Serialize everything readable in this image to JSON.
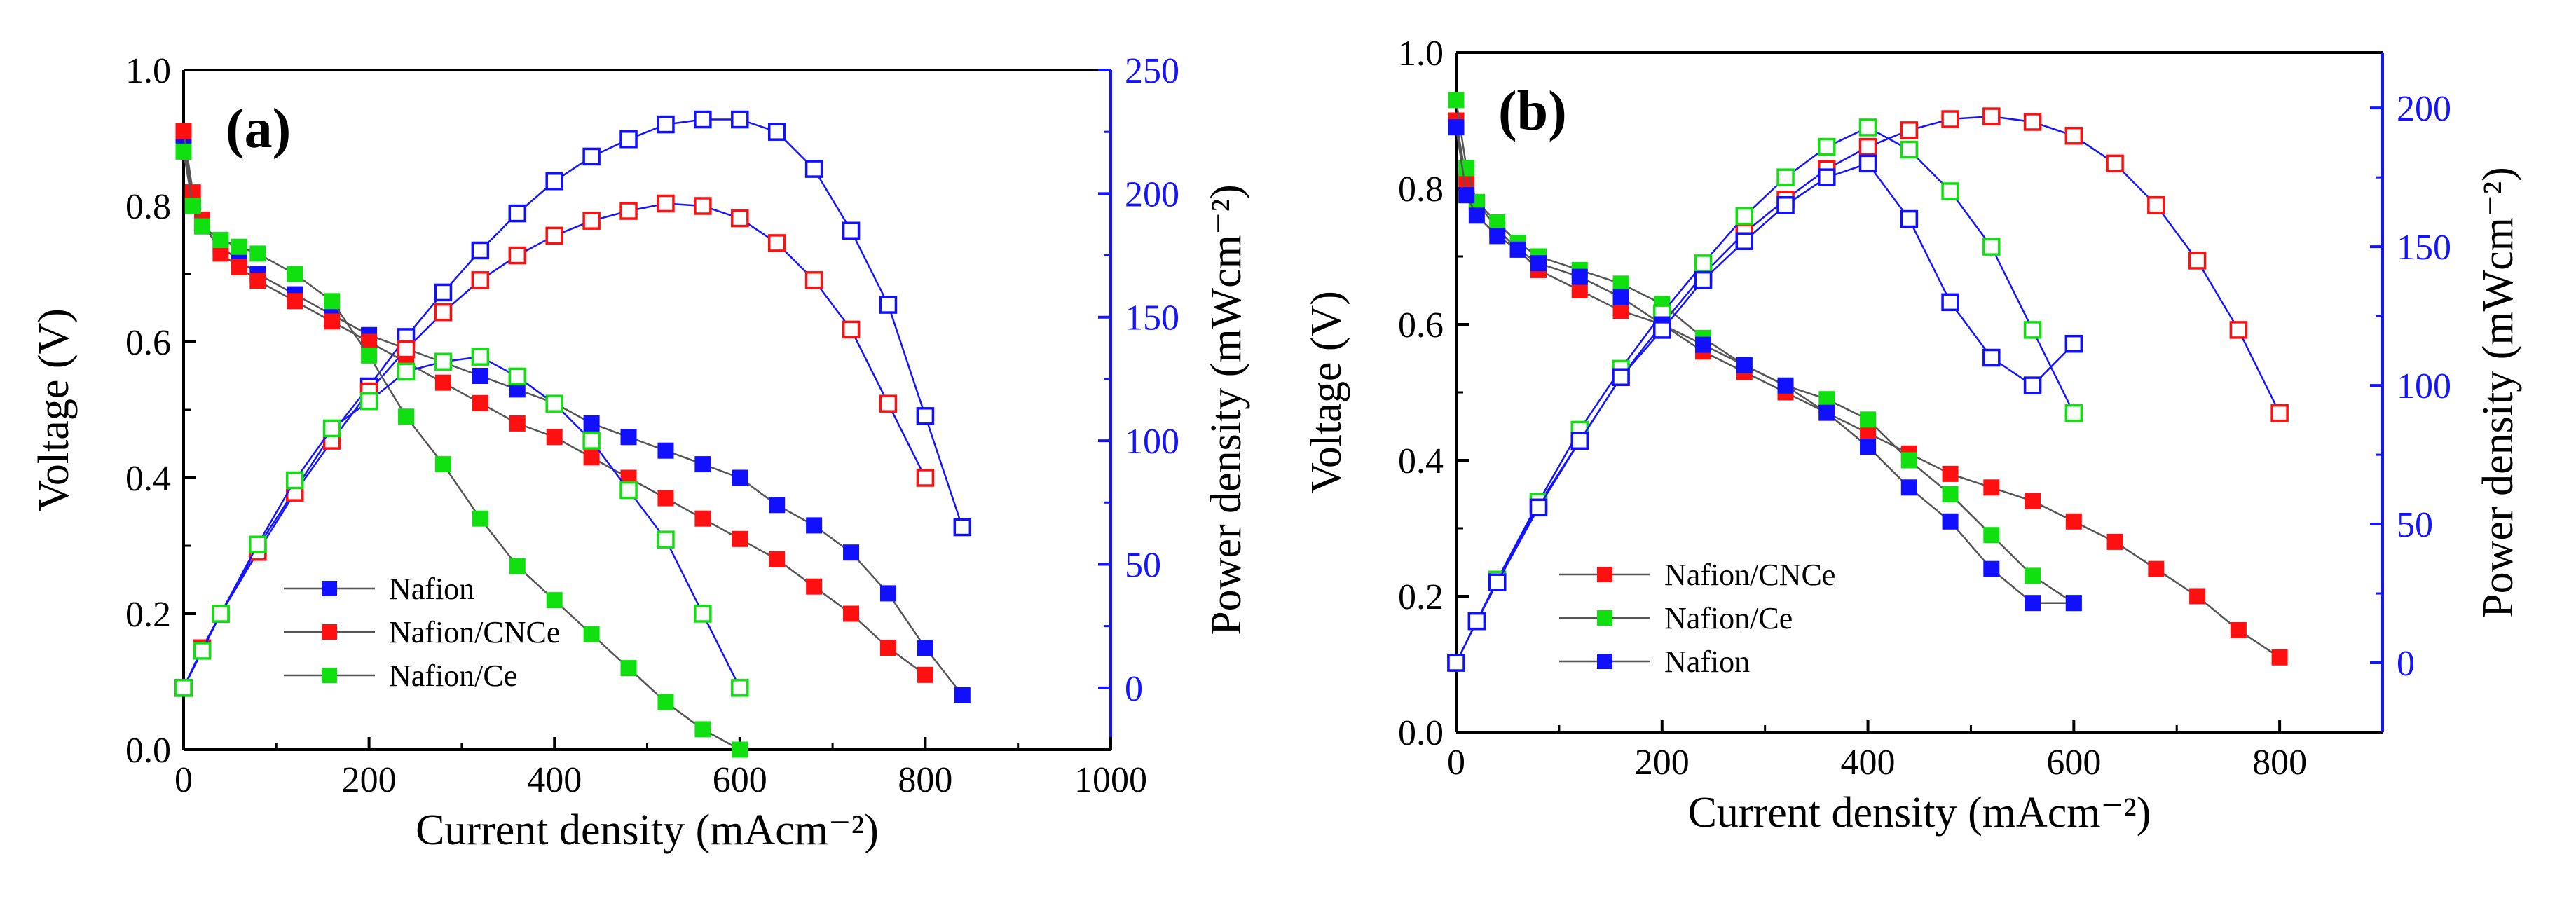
{
  "colors": {
    "nafion": "#1010ff",
    "cnce": "#ff1010",
    "ce": "#10e010",
    "right_axis": "#1414ff",
    "line": "#555555"
  },
  "chart_data": [
    {
      "type": "line",
      "panel_label": "(a)",
      "xlabel": "Current density (mAcm⁻²)",
      "ylabel": "Voltage (V)",
      "y2label": "Power density (mWcm⁻²)",
      "xlim": [
        0,
        1000
      ],
      "ylim": [
        0,
        1.0
      ],
      "y2lim": [
        -25,
        250
      ],
      "xticks": [
        0,
        200,
        400,
        600,
        800,
        1000
      ],
      "yticks": [
        0.0,
        0.2,
        0.4,
        0.6,
        0.8,
        1.0
      ],
      "y2ticks": [
        0,
        50,
        100,
        150,
        200,
        250
      ],
      "legend_position": "bottom-left",
      "legend": [
        "Nafion",
        "Nafion/CNCe",
        "Nafion/Ce"
      ],
      "series": [
        {
          "name": "Nafion",
          "color_key": "nafion",
          "kind": "voltage",
          "x": [
            0,
            10,
            20,
            40,
            60,
            80,
            120,
            160,
            200,
            240,
            280,
            320,
            360,
            400,
            440,
            480,
            520,
            560,
            600,
            640,
            680,
            720,
            760,
            800,
            840
          ],
          "y": [
            0.9,
            0.8,
            0.77,
            0.74,
            0.72,
            0.7,
            0.67,
            0.64,
            0.61,
            0.59,
            0.57,
            0.55,
            0.53,
            0.51,
            0.48,
            0.46,
            0.44,
            0.42,
            0.4,
            0.36,
            0.33,
            0.29,
            0.23,
            0.15,
            0.08
          ]
        },
        {
          "name": "Nafion",
          "color_key": "nafion",
          "kind": "power",
          "x": [
            0,
            20,
            40,
            80,
            120,
            160,
            200,
            240,
            280,
            320,
            360,
            400,
            440,
            480,
            520,
            560,
            600,
            640,
            680,
            720,
            760,
            800,
            840
          ],
          "y": [
            0,
            16,
            30,
            57,
            80,
            103,
            122,
            142,
            160,
            177,
            192,
            205,
            215,
            222,
            228,
            230,
            230,
            225,
            210,
            185,
            155,
            110,
            65
          ]
        },
        {
          "name": "Nafion/CNCe",
          "color_key": "cnce",
          "kind": "voltage",
          "x": [
            0,
            10,
            20,
            40,
            60,
            80,
            120,
            160,
            200,
            240,
            280,
            320,
            360,
            400,
            440,
            480,
            520,
            560,
            600,
            640,
            680,
            720,
            760,
            800
          ],
          "y": [
            0.91,
            0.82,
            0.78,
            0.73,
            0.71,
            0.69,
            0.66,
            0.63,
            0.6,
            0.57,
            0.54,
            0.51,
            0.48,
            0.46,
            0.43,
            0.4,
            0.37,
            0.34,
            0.31,
            0.28,
            0.24,
            0.2,
            0.15,
            0.11
          ]
        },
        {
          "name": "Nafion/CNCe",
          "color_key": "cnce",
          "kind": "power",
          "x": [
            0,
            20,
            40,
            80,
            120,
            160,
            200,
            240,
            280,
            320,
            360,
            400,
            440,
            480,
            520,
            560,
            600,
            640,
            680,
            720,
            760,
            800
          ],
          "y": [
            0,
            16,
            30,
            55,
            79,
            100,
            120,
            137,
            152,
            165,
            175,
            183,
            189,
            193,
            196,
            195,
            190,
            180,
            165,
            145,
            115,
            85
          ]
        },
        {
          "name": "Nafion/Ce",
          "color_key": "ce",
          "kind": "voltage",
          "x": [
            0,
            10,
            20,
            40,
            60,
            80,
            120,
            160,
            200,
            240,
            280,
            320,
            360,
            400,
            440,
            480,
            520,
            560,
            600
          ],
          "y": [
            0.88,
            0.8,
            0.77,
            0.75,
            0.74,
            0.73,
            0.7,
            0.66,
            0.58,
            0.49,
            0.42,
            0.34,
            0.27,
            0.22,
            0.17,
            0.12,
            0.07,
            0.03,
            0.0
          ]
        },
        {
          "name": "Nafion/Ce",
          "color_key": "ce",
          "kind": "power",
          "x": [
            0,
            20,
            40,
            80,
            120,
            160,
            200,
            240,
            280,
            320,
            360,
            400,
            440,
            480,
            520,
            560,
            600
          ],
          "y": [
            0,
            15,
            30,
            58,
            84,
            105,
            116,
            128,
            132,
            134,
            126,
            115,
            100,
            80,
            60,
            30,
            0
          ]
        }
      ]
    },
    {
      "type": "line",
      "panel_label": "(b)",
      "xlabel": "Current density (mAcm⁻²)",
      "ylabel": "Voltage (V)",
      "y2label": "Power density (mWcm⁻²)",
      "xlim": [
        0,
        900
      ],
      "ylim": [
        0,
        1.0
      ],
      "y2lim": [
        -25,
        220
      ],
      "xticks": [
        0,
        200,
        400,
        600,
        800
      ],
      "yticks": [
        0.0,
        0.2,
        0.4,
        0.6,
        0.8,
        1.0
      ],
      "y2ticks": [
        0,
        50,
        100,
        150,
        200
      ],
      "legend_position": "bottom-left",
      "legend": [
        "Nafion/CNCe",
        "Nafion/Ce",
        "Nafion"
      ],
      "series": [
        {
          "name": "Nafion/CNCe",
          "color_key": "cnce",
          "kind": "voltage",
          "x": [
            0,
            10,
            20,
            40,
            60,
            80,
            120,
            160,
            200,
            240,
            280,
            320,
            360,
            400,
            440,
            480,
            520,
            560,
            600,
            640,
            680,
            720,
            760,
            800
          ],
          "y": [
            0.9,
            0.81,
            0.78,
            0.74,
            0.71,
            0.68,
            0.65,
            0.62,
            0.6,
            0.56,
            0.53,
            0.5,
            0.47,
            0.44,
            0.41,
            0.38,
            0.36,
            0.34,
            0.31,
            0.28,
            0.24,
            0.2,
            0.15,
            0.11
          ]
        },
        {
          "name": "Nafion/CNCe",
          "color_key": "cnce",
          "kind": "power",
          "x": [
            0,
            20,
            40,
            80,
            120,
            160,
            200,
            240,
            280,
            320,
            360,
            400,
            440,
            480,
            520,
            560,
            600,
            640,
            680,
            720,
            760,
            800
          ],
          "y": [
            0,
            15,
            30,
            57,
            80,
            103,
            122,
            140,
            155,
            167,
            178,
            186,
            192,
            196,
            197,
            195,
            190,
            180,
            165,
            145,
            120,
            90
          ]
        },
        {
          "name": "Nafion/Ce",
          "color_key": "ce",
          "kind": "voltage",
          "x": [
            0,
            10,
            20,
            40,
            60,
            80,
            120,
            160,
            200,
            240,
            280,
            320,
            360,
            400,
            440,
            480,
            520,
            560,
            600
          ],
          "y": [
            0.93,
            0.83,
            0.78,
            0.75,
            0.72,
            0.7,
            0.68,
            0.66,
            0.63,
            0.58,
            0.54,
            0.51,
            0.49,
            0.46,
            0.4,
            0.35,
            0.29,
            0.23,
            0.19
          ]
        },
        {
          "name": "Nafion/Ce",
          "color_key": "ce",
          "kind": "power",
          "x": [
            0,
            20,
            40,
            80,
            120,
            160,
            200,
            240,
            280,
            320,
            360,
            400,
            440,
            480,
            520,
            560,
            600
          ],
          "y": [
            0,
            15,
            30,
            58,
            84,
            106,
            126,
            144,
            161,
            175,
            186,
            193,
            185,
            170,
            150,
            120,
            90
          ]
        },
        {
          "name": "Nafion",
          "color_key": "nafion",
          "kind": "voltage",
          "x": [
            0,
            10,
            20,
            40,
            60,
            80,
            120,
            160,
            200,
            240,
            280,
            320,
            360,
            400,
            440,
            480,
            520,
            560,
            600
          ],
          "y": [
            0.89,
            0.79,
            0.76,
            0.73,
            0.71,
            0.69,
            0.67,
            0.64,
            0.6,
            0.57,
            0.54,
            0.51,
            0.47,
            0.42,
            0.36,
            0.31,
            0.24,
            0.19,
            0.19
          ]
        },
        {
          "name": "Nafion",
          "color_key": "nafion",
          "kind": "power",
          "x": [
            0,
            20,
            40,
            80,
            120,
            160,
            200,
            240,
            280,
            320,
            360,
            400,
            440,
            480,
            520,
            560,
            600
          ],
          "y": [
            0,
            15,
            29,
            56,
            80,
            103,
            120,
            138,
            152,
            165,
            175,
            180,
            160,
            130,
            110,
            100,
            115
          ]
        }
      ]
    }
  ]
}
